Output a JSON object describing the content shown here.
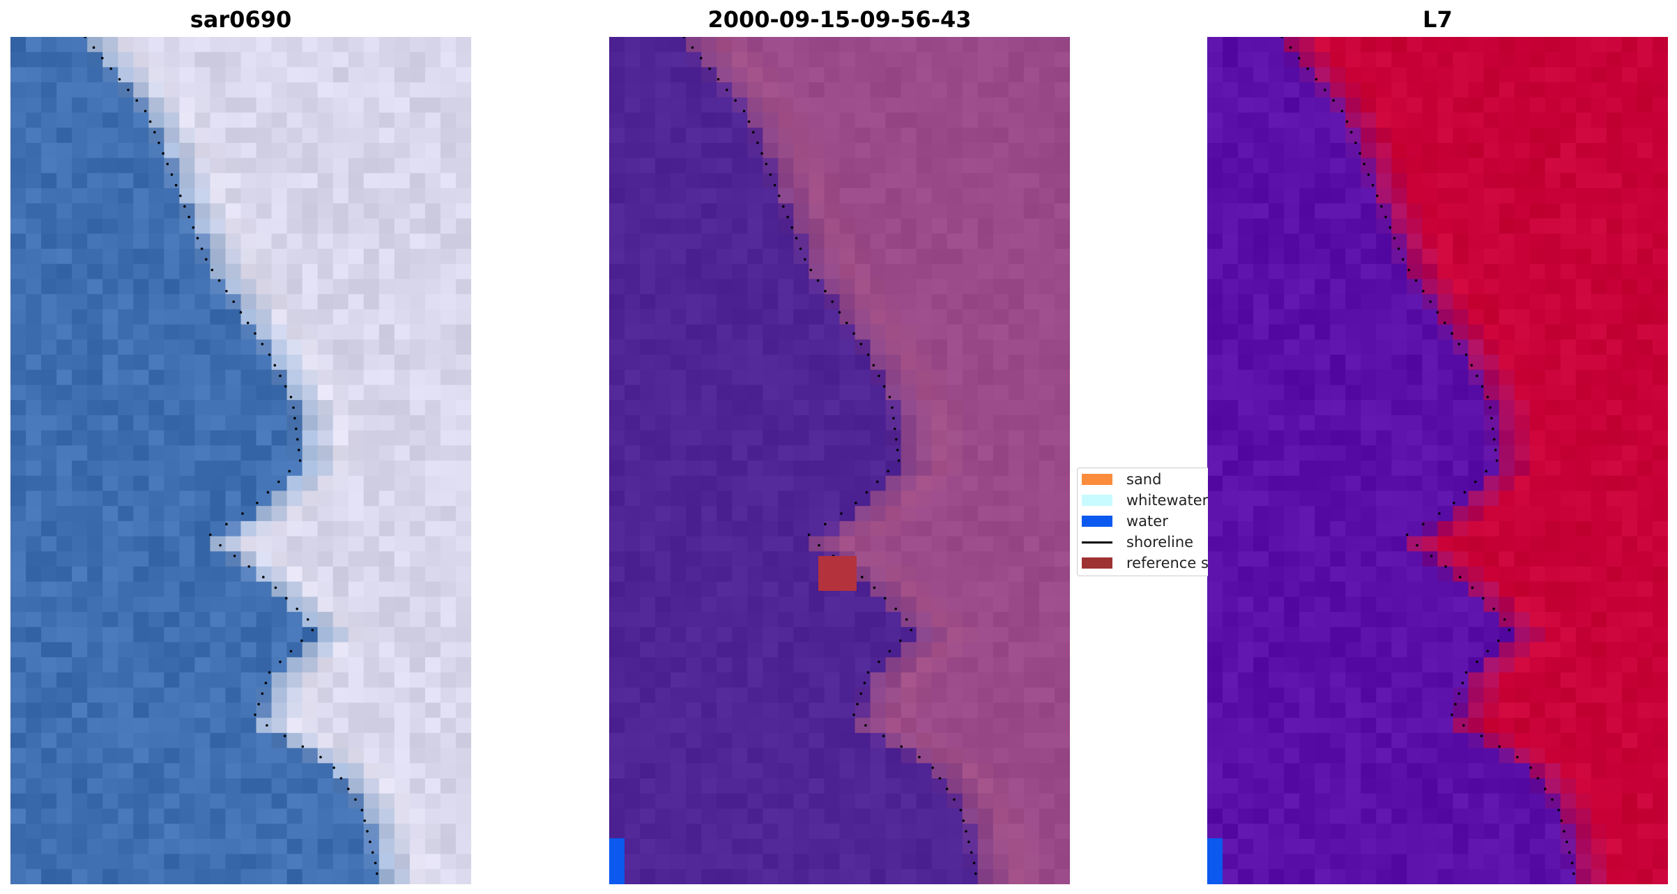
{
  "panels": [
    {
      "title": "sar0690",
      "palette": [
        "#3f6fb0",
        "#d8d6ea"
      ],
      "highlight": "#ffffff",
      "noise": 0.1
    },
    {
      "title": "2000-09-15-09-56-43",
      "palette": [
        "#4f2494",
        "#9a4a88"
      ],
      "highlight": "#c0657c",
      "noise": 0.05
    },
    {
      "title": "L7",
      "palette": [
        "#5a10a8",
        "#c80038"
      ],
      "highlight": "#e0103a",
      "noise": 0.07
    }
  ],
  "legend": {
    "items": [
      {
        "label": "sand",
        "color": "#fb8c3c",
        "kind": "swatch"
      },
      {
        "label": "whitewater",
        "color": "#c7fbff",
        "kind": "swatch"
      },
      {
        "label": "water",
        "color": "#0b59ee",
        "kind": "swatch"
      },
      {
        "label": "shoreline",
        "color": "#000000",
        "kind": "line"
      },
      {
        "label": "reference s",
        "color": "#9e3232",
        "kind": "swatch"
      }
    ]
  }
}
